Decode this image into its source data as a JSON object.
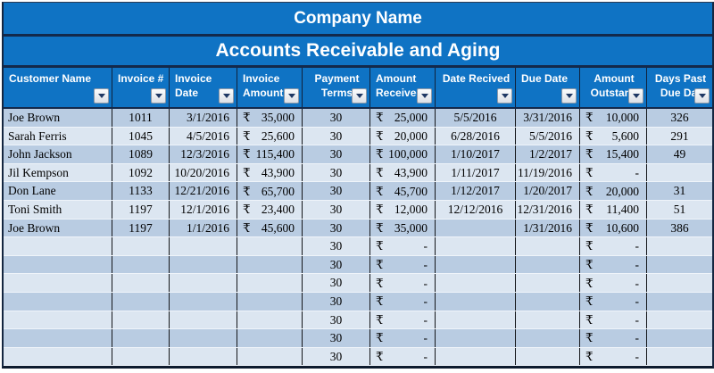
{
  "titles": {
    "company": "Company Name",
    "subtitle": "Accounts Receivable and Aging"
  },
  "colors": {
    "band_blue": "#0F73C4",
    "divider_navy": "#13294B",
    "row_dark": "#B9CCE2",
    "row_light": "#DCE6F1",
    "header_text": "#FFFFFF",
    "cell_text": "#000000",
    "dropdown_triangle": "#1F3864"
  },
  "table": {
    "currency_symbol": "₹",
    "columns": [
      {
        "key": "customer",
        "label": "Customer Name",
        "header_align": "left",
        "type": "text"
      },
      {
        "key": "invoice_no",
        "label": "Invoice #",
        "header_align": "left",
        "type": "center"
      },
      {
        "key": "invoice_date",
        "label": "Invoice Date",
        "header_align": "left",
        "type": "date-right"
      },
      {
        "key": "invoice_amount",
        "label": "Invoice\nAmount",
        "header_align": "left",
        "type": "currency"
      },
      {
        "key": "payment_terms",
        "label": "Payment\nTerms",
        "header_align": "center",
        "type": "center"
      },
      {
        "key": "amount_received",
        "label": "Amount\nReceived",
        "header_align": "left",
        "type": "currency"
      },
      {
        "key": "date_received",
        "label": "Date Recived",
        "header_align": "center",
        "type": "date-center"
      },
      {
        "key": "due_date",
        "label": "Due Date",
        "header_align": "left",
        "type": "date-right"
      },
      {
        "key": "amount_outstanding",
        "label": "Amount\nOutstand",
        "header_align": "center",
        "type": "currency"
      },
      {
        "key": "days_past_due",
        "label": "Days Past\nDue Dat",
        "header_align": "center",
        "type": "center"
      }
    ],
    "rows": [
      {
        "customer": "Joe Brown",
        "invoice_no": "1011",
        "invoice_date": "3/1/2016",
        "invoice_amount": "35,000",
        "payment_terms": "30",
        "amount_received": "25,000",
        "date_received": "5/5/2016",
        "due_date": "3/31/2016",
        "amount_outstanding": "10,000",
        "days_past_due": "326"
      },
      {
        "customer": "Sarah Ferris",
        "invoice_no": "1045",
        "invoice_date": "4/5/2016",
        "invoice_amount": "25,600",
        "payment_terms": "30",
        "amount_received": "20,000",
        "date_received": "6/28/2016",
        "due_date": "5/5/2016",
        "amount_outstanding": "5,600",
        "days_past_due": "291"
      },
      {
        "customer": "John Jackson",
        "invoice_no": "1089",
        "invoice_date": "12/3/2016",
        "invoice_amount": "115,400",
        "payment_terms": "30",
        "amount_received": "100,000",
        "date_received": "1/10/2017",
        "due_date": "1/2/2017",
        "amount_outstanding": "15,400",
        "days_past_due": "49"
      },
      {
        "customer": "Jil Kempson",
        "invoice_no": "1092",
        "invoice_date": "10/20/2016",
        "invoice_amount": "43,900",
        "payment_terms": "30",
        "amount_received": "43,900",
        "date_received": "1/11/2017",
        "due_date": "11/19/2016",
        "amount_outstanding": "-",
        "days_past_due": ""
      },
      {
        "customer": "Don Lane",
        "invoice_no": "1133",
        "invoice_date": "12/21/2016",
        "invoice_amount": "65,700",
        "payment_terms": "30",
        "amount_received": "45,700",
        "date_received": "1/12/2017",
        "due_date": "1/20/2017",
        "amount_outstanding": "20,000",
        "days_past_due": "31"
      },
      {
        "customer": "Toni Smith",
        "invoice_no": "1197",
        "invoice_date": "12/1/2016",
        "invoice_amount": "23,400",
        "payment_terms": "30",
        "amount_received": "12,000",
        "date_received": "12/12/2016",
        "due_date": "12/31/2016",
        "amount_outstanding": "11,400",
        "days_past_due": "51"
      },
      {
        "customer": "Joe Brown",
        "invoice_no": "1197",
        "invoice_date": "1/1/2016",
        "invoice_amount": "45,600",
        "payment_terms": "30",
        "amount_received": "35,000",
        "date_received": "",
        "due_date": "1/31/2016",
        "amount_outstanding": "10,600",
        "days_past_due": "386"
      },
      {
        "customer": "",
        "invoice_no": "",
        "invoice_date": "",
        "invoice_amount": "",
        "payment_terms": "30",
        "amount_received": "-",
        "date_received": "",
        "due_date": "",
        "amount_outstanding": "-",
        "days_past_due": ""
      },
      {
        "customer": "",
        "invoice_no": "",
        "invoice_date": "",
        "invoice_amount": "",
        "payment_terms": "30",
        "amount_received": "-",
        "date_received": "",
        "due_date": "",
        "amount_outstanding": "-",
        "days_past_due": ""
      },
      {
        "customer": "",
        "invoice_no": "",
        "invoice_date": "",
        "invoice_amount": "",
        "payment_terms": "30",
        "amount_received": "-",
        "date_received": "",
        "due_date": "",
        "amount_outstanding": "-",
        "days_past_due": ""
      },
      {
        "customer": "",
        "invoice_no": "",
        "invoice_date": "",
        "invoice_amount": "",
        "payment_terms": "30",
        "amount_received": "-",
        "date_received": "",
        "due_date": "",
        "amount_outstanding": "-",
        "days_past_due": ""
      },
      {
        "customer": "",
        "invoice_no": "",
        "invoice_date": "",
        "invoice_amount": "",
        "payment_terms": "30",
        "amount_received": "-",
        "date_received": "",
        "due_date": "",
        "amount_outstanding": "-",
        "days_past_due": ""
      },
      {
        "customer": "",
        "invoice_no": "",
        "invoice_date": "",
        "invoice_amount": "",
        "payment_terms": "30",
        "amount_received": "-",
        "date_received": "",
        "due_date": "",
        "amount_outstanding": "-",
        "days_past_due": ""
      },
      {
        "customer": "",
        "invoice_no": "",
        "invoice_date": "",
        "invoice_amount": "",
        "payment_terms": "30",
        "amount_received": "-",
        "date_received": "",
        "due_date": "",
        "amount_outstanding": "-",
        "days_past_due": ""
      }
    ]
  }
}
